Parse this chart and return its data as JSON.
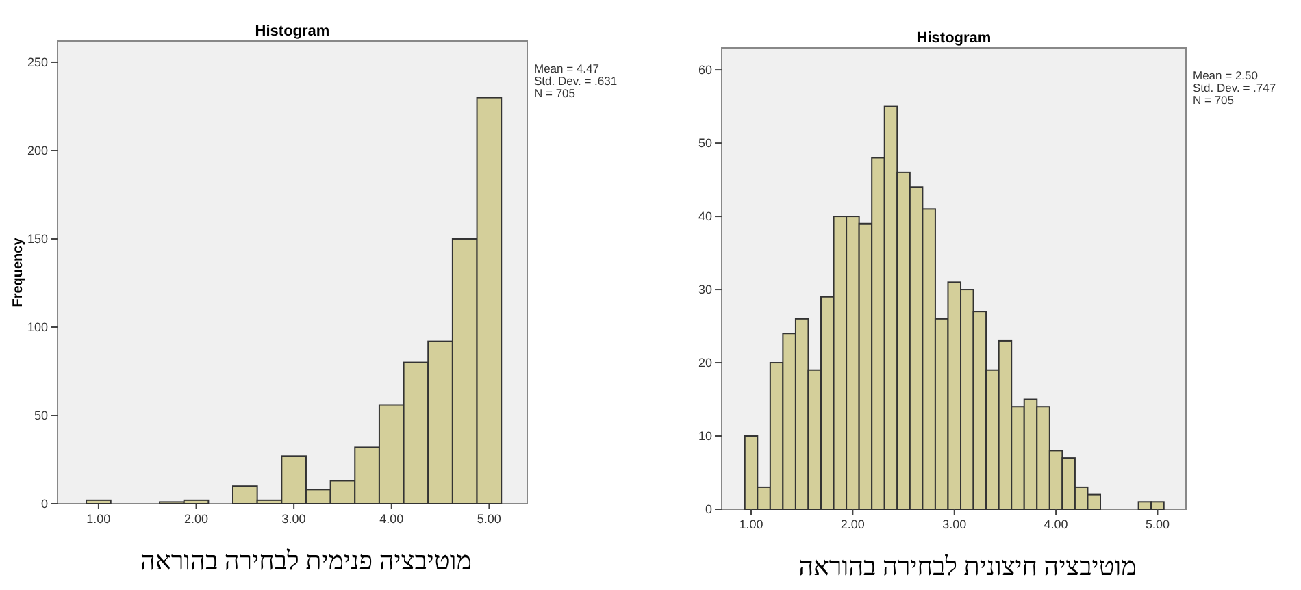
{
  "chart_data": [
    {
      "type": "histogram",
      "title": "Histogram",
      "xlabel": "מוטיבציה פנימית לבחירה בהוראה",
      "ylabel": "Frequency",
      "color": "#d4cf9a",
      "annotations": [
        "Mean = 4.47",
        "Std. Dev. = .631",
        "N = 705"
      ],
      "bins": [
        0.875,
        1.125,
        1.375,
        1.625,
        1.875,
        2.125,
        2.375,
        2.625,
        2.875,
        3.125,
        3.375,
        3.625,
        3.875,
        4.125,
        4.375,
        4.625,
        4.875,
        5.125
      ],
      "values": [
        2,
        0,
        0,
        1,
        2,
        0,
        10,
        2,
        27,
        8,
        13,
        32,
        56,
        80,
        92,
        150,
        230
      ],
      "xlim": [
        0.58,
        5.39
      ],
      "xticks": [
        {
          "value": 1,
          "label": "1.00"
        },
        {
          "value": 2,
          "label": "2.00"
        },
        {
          "value": 3,
          "label": "3.00"
        },
        {
          "value": 4,
          "label": "4.00"
        },
        {
          "value": 5,
          "label": "5.00"
        }
      ],
      "ylim": [
        0,
        262
      ],
      "yticks": [
        0,
        50,
        100,
        150,
        200,
        250
      ]
    },
    {
      "type": "histogram",
      "title": "Histogram",
      "xlabel": "מוטיבציה חיצונית לבחירה בהוראה",
      "color": "#d4cf9a",
      "annotations": [
        "Mean = 2.50",
        "Std. Dev. = .747",
        "N = 705"
      ],
      "bins": [
        0.9375,
        1.0625,
        1.1875,
        1.3125,
        1.4375,
        1.5625,
        1.6875,
        1.8125,
        1.9375,
        2.0625,
        2.1875,
        2.3125,
        2.4375,
        2.5625,
        2.6875,
        2.8125,
        2.9375,
        3.0625,
        3.1875,
        3.3125,
        3.4375,
        3.5625,
        3.6875,
        3.8125,
        3.9375,
        4.0625,
        4.1875,
        4.3125,
        4.4375,
        4.5625,
        4.6875,
        4.8125,
        4.9375,
        5.0625
      ],
      "values": [
        10,
        3,
        20,
        24,
        26,
        19,
        29,
        40,
        40,
        39,
        48,
        55,
        46,
        44,
        41,
        26,
        31,
        30,
        27,
        19,
        23,
        14,
        15,
        14,
        8,
        7,
        3,
        2,
        0,
        0,
        0,
        1,
        1
      ],
      "xlim": [
        0.71,
        5.28
      ],
      "xticks": [
        {
          "value": 1,
          "label": "1.00"
        },
        {
          "value": 2,
          "label": "2.00"
        },
        {
          "value": 3,
          "label": "3.00"
        },
        {
          "value": 4,
          "label": "4.00"
        },
        {
          "value": 5,
          "label": "5.00"
        }
      ],
      "ylim": [
        0,
        63
      ],
      "yticks": [
        0,
        10,
        20,
        30,
        40,
        50,
        60
      ]
    }
  ]
}
